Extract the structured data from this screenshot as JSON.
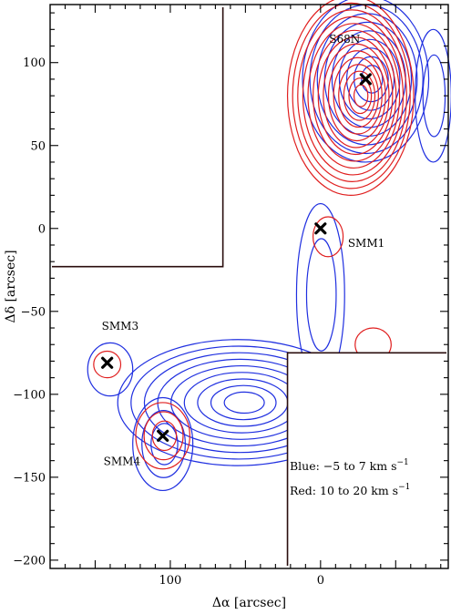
{
  "chart_data": {
    "type": "contour",
    "xlabel": "Δα [arcsec]",
    "ylabel": "Δδ [arcsec]",
    "xlim": [
      180,
      -85
    ],
    "ylim": [
      -205,
      135
    ],
    "x_ticks": [
      100,
      0
    ],
    "y_ticks": [
      100,
      50,
      0,
      -50,
      -100,
      -150,
      -200
    ],
    "legend": {
      "blue_label": "Blue: −5 to 7 km s",
      "red_label": "Red: 10 to 20 km s",
      "exponent": "−1"
    },
    "colors": {
      "blue": "#1f2fe0",
      "red": "#e01f1f",
      "frame": "#000000"
    },
    "sources": [
      {
        "label": "S68N",
        "x": -30,
        "y": 90
      },
      {
        "label": "SMM1",
        "x": 0,
        "y": 0
      },
      {
        "label": "SMM3",
        "x": 142,
        "y": -81
      },
      {
        "label": "SMM4",
        "x": 105,
        "y": -125
      }
    ],
    "masked_regions": [
      {
        "x_range": [
          180,
          65
        ],
        "y_range": [
          135,
          -23
        ]
      },
      {
        "x_range": [
          22,
          -85
        ],
        "y_range": [
          -75,
          -205
        ]
      }
    ],
    "blue_contours": [
      {
        "cx": -30,
        "cy": 90,
        "rx": 42,
        "ry": 50,
        "levels": 9
      },
      {
        "cx": 55,
        "cy": -105,
        "rx": 80,
        "ry": 38,
        "levels": 9
      },
      {
        "cx": 105,
        "cy": -130,
        "rx": 20,
        "ry": 28,
        "levels": 3
      },
      {
        "cx": 140,
        "cy": -85,
        "rx": 15,
        "ry": 16,
        "levels": 1
      },
      {
        "cx": 0,
        "cy": -40,
        "rx": 16,
        "ry": 55,
        "levels": 2
      },
      {
        "cx": -75,
        "cy": 80,
        "rx": 12,
        "ry": 40,
        "levels": 2
      }
    ],
    "red_contours": [
      {
        "cx": -20,
        "cy": 80,
        "rx": 42,
        "ry": 60,
        "levels": 14
      },
      {
        "cx": 105,
        "cy": -125,
        "rx": 18,
        "ry": 20,
        "levels": 3
      },
      {
        "cx": 142,
        "cy": -82,
        "rx": 9,
        "ry": 8,
        "levels": 1
      },
      {
        "cx": -5,
        "cy": -5,
        "rx": 10,
        "ry": 12,
        "levels": 1
      },
      {
        "cx": -35,
        "cy": -70,
        "rx": 12,
        "ry": 10,
        "levels": 1
      }
    ]
  }
}
